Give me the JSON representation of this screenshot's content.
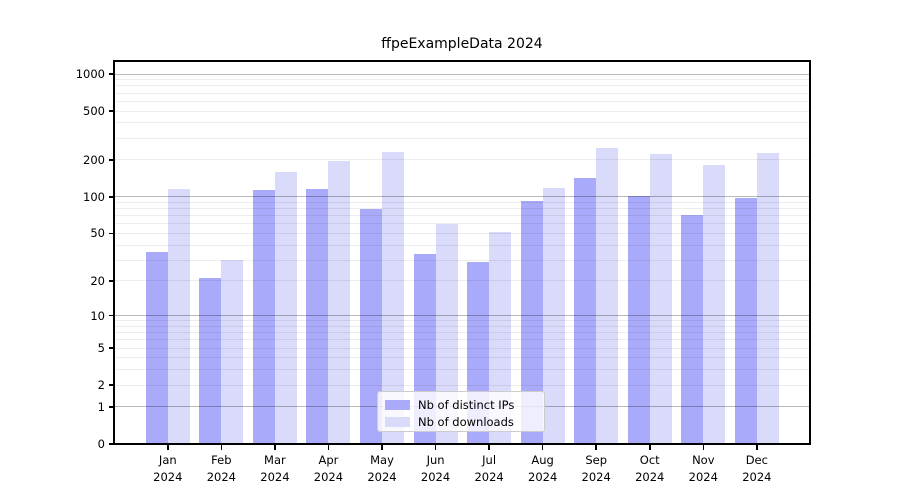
{
  "chart_data": {
    "type": "bar",
    "title": "ffpeExampleData 2024",
    "categories": [
      "Jan",
      "Feb",
      "Mar",
      "Apr",
      "May",
      "Jun",
      "Jul",
      "Aug",
      "Sep",
      "Oct",
      "Nov",
      "Dec"
    ],
    "category_year": "2024",
    "series": [
      {
        "name": "Nb of distinct IPs",
        "color": "#aaaafa",
        "values": [
          35,
          21,
          114,
          115,
          80,
          34,
          29,
          92,
          142,
          102,
          71,
          98
        ]
      },
      {
        "name": "Nb of downloads",
        "color": "#dadafa",
        "values": [
          117,
          30,
          160,
          197,
          232,
          60,
          51,
          118,
          252,
          225,
          183,
          228
        ]
      }
    ],
    "yscale": "log1p",
    "ylim": [
      0,
      1290
    ],
    "ytick_labels": [
      "1000",
      "500",
      "200",
      "100",
      "50",
      "20",
      "10",
      "5",
      "2",
      "1",
      "0"
    ],
    "ytick_values": [
      1000,
      500,
      200,
      100,
      50,
      20,
      10,
      5,
      2,
      1,
      0
    ],
    "major_grid_values": [
      1,
      10,
      100,
      1000
    ],
    "minor_grid_values": [
      2,
      3,
      4,
      5,
      6,
      7,
      8,
      9,
      20,
      30,
      40,
      50,
      60,
      70,
      80,
      90,
      200,
      300,
      400,
      500,
      600,
      700,
      800,
      900
    ],
    "grid": true,
    "legend_position": "lower center inside",
    "colors": {
      "major_grid": "#b9b9b9",
      "minor_grid": "#ededed",
      "spine": "#000000",
      "text": "#000000"
    }
  }
}
